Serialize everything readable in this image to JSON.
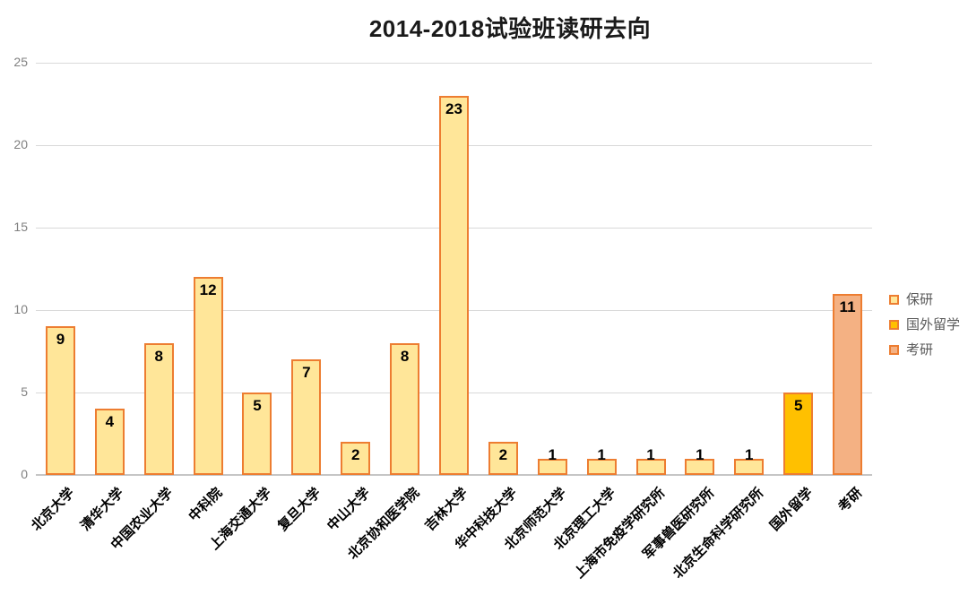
{
  "colors": {
    "background": "#FFFFFF",
    "gridline": "#D9D9D9",
    "axis_line": "#C6C6C6",
    "tick_text": "#808080",
    "legend_text": "#595959",
    "title_text": "#1A1A1A",
    "value_label_text": "#000000",
    "category_label_text": "#000000",
    "bar_border": "#ED7D31"
  },
  "chart_data": {
    "type": "bar",
    "title": "2014-2018试验班读研去向",
    "categories": [
      "北京大学",
      "清华大学",
      "中国农业大学",
      "中科院",
      "上海交通大学",
      "复旦大学",
      "中山大学",
      "北京协和医学院",
      "吉林大学",
      "华中科技大学",
      "北京师范大学",
      "北京理工大学",
      "上海市免疫学研究所",
      "军事兽医研究所",
      "北京生命科学研究所",
      "国外留学",
      "考研"
    ],
    "values": [
      9,
      4,
      8,
      12,
      5,
      7,
      2,
      8,
      23,
      2,
      1,
      1,
      1,
      1,
      1,
      5,
      11
    ],
    "bar_series_index": [
      0,
      0,
      0,
      0,
      0,
      0,
      0,
      0,
      0,
      0,
      0,
      0,
      0,
      0,
      0,
      1,
      2
    ],
    "series": [
      {
        "name": "保研",
        "fill": "#FFE699",
        "border": "#ED7D31"
      },
      {
        "name": "国外留学",
        "fill": "#FFC000",
        "border": "#ED7D31"
      },
      {
        "name": "考研",
        "fill": "#F4B183",
        "border": "#ED7D31"
      }
    ],
    "xlabel": "",
    "ylabel": "",
    "ylim": [
      0,
      25
    ],
    "yticks": [
      0,
      5,
      10,
      15,
      20,
      25
    ],
    "grid": true,
    "value_labels": true,
    "legend_position": "right"
  }
}
